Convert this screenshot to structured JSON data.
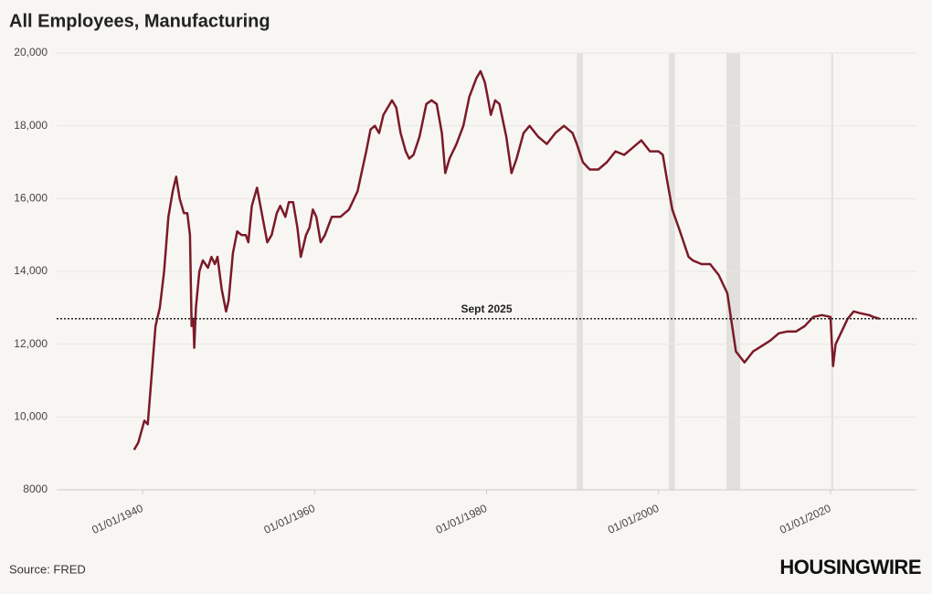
{
  "chart_data": {
    "type": "line",
    "title": "All Employees, Manufacturing",
    "source": "Source: FRED",
    "brand": "HOUSINGWIRE",
    "xlim": [
      1930,
      2030
    ],
    "xticks": [
      {
        "value": 1940,
        "label": "01/01/1940"
      },
      {
        "value": 1960,
        "label": "01/01/1960"
      },
      {
        "value": 1980,
        "label": "01/01/1980"
      },
      {
        "value": 2000,
        "label": "01/01/2000"
      },
      {
        "value": 2020,
        "label": "01/01/2020"
      }
    ],
    "ylim": [
      8000,
      20000
    ],
    "yticks": [
      8000,
      {
        "value": 10000,
        "label": "10,000"
      },
      {
        "value": 12000,
        "label": "12,000"
      },
      {
        "value": 14000,
        "label": "14,000"
      },
      {
        "value": 16000,
        "label": "16,000"
      },
      {
        "value": 18000,
        "label": "18,000"
      },
      {
        "value": 20000,
        "label": "20,000"
      }
    ],
    "grid": true,
    "reference_line": {
      "value": 12700,
      "label": "Sept 2025"
    },
    "shaded_periods": [
      [
        1990.5,
        1991.2
      ],
      [
        2001.2,
        2001.9
      ],
      [
        2007.9,
        2009.5
      ],
      [
        2020.1,
        2020.3
      ]
    ],
    "shade_color": "#e2e0dd",
    "series": [
      {
        "name": "All Employees, Manufacturing",
        "color": "#7b1a28",
        "x": [
          1939.0,
          1939.5,
          1940.2,
          1940.6,
          1941,
          1941.5,
          1942,
          1942.5,
          1943,
          1943.5,
          1943.9,
          1944.3,
          1944.8,
          1945.2,
          1945.5,
          1945.7,
          1945.9,
          1946.0,
          1946.2,
          1946.6,
          1947,
          1947.6,
          1948,
          1948.4,
          1948.7,
          1949.2,
          1949.7,
          1950,
          1950.5,
          1951,
          1951.5,
          1952,
          1952.3,
          1952.7,
          1953.3,
          1953.7,
          1954.5,
          1955,
          1955.6,
          1956,
          1956.6,
          1957,
          1957.5,
          1958,
          1958.4,
          1959,
          1959.4,
          1959.8,
          1960.2,
          1960.7,
          1961.2,
          1962,
          1963,
          1964,
          1965,
          1966,
          1966.5,
          1967,
          1967.5,
          1968,
          1969,
          1969.5,
          1970,
          1970.6,
          1971,
          1971.5,
          1972.2,
          1973,
          1973.6,
          1974.2,
          1974.8,
          1975.2,
          1975.7,
          1976.5,
          1977.3,
          1978,
          1978.8,
          1979.3,
          1979.8,
          1980.2,
          1980.5,
          1981,
          1981.5,
          1982.3,
          1982.9,
          1983.5,
          1984.3,
          1985,
          1986,
          1987,
          1988,
          1989,
          1990,
          1990.5,
          1991.2,
          1992,
          1993,
          1994,
          1995,
          1996,
          1997,
          1998,
          1999,
          2000,
          2000.5,
          2001,
          2001.6,
          2002.5,
          2003.5,
          2004,
          2005,
          2006,
          2007,
          2008,
          2009,
          2010,
          2011,
          2012,
          2013,
          2014,
          2015,
          2016,
          2017,
          2018,
          2019,
          2020.0,
          2020.3,
          2020.6,
          2021,
          2022,
          2022.7,
          2023.5,
          2024.5,
          2025.0,
          2025.7
        ],
        "values": [
          9100,
          9300,
          9900,
          9800,
          11000,
          12500,
          13000,
          14000,
          15500,
          16200,
          16600,
          16000,
          15600,
          15600,
          15000,
          12500,
          12700,
          11900,
          13000,
          14000,
          14300,
          14100,
          14400,
          14200,
          14400,
          13500,
          12900,
          13200,
          14500,
          15100,
          15000,
          15000,
          14800,
          15800,
          16300,
          15800,
          14800,
          15000,
          15600,
          15800,
          15500,
          15900,
          15900,
          15200,
          14400,
          15000,
          15200,
          15700,
          15500,
          14800,
          15000,
          15500,
          15500,
          15700,
          16200,
          17300,
          17900,
          18000,
          17800,
          18300,
          18700,
          18500,
          17800,
          17300,
          17100,
          17200,
          17700,
          18600,
          18700,
          18600,
          17800,
          16700,
          17100,
          17500,
          18000,
          18800,
          19300,
          19500,
          19200,
          18700,
          18300,
          18700,
          18600,
          17700,
          16700,
          17100,
          17800,
          18000,
          17700,
          17500,
          17800,
          18000,
          17800,
          17500,
          17000,
          16800,
          16800,
          17000,
          17300,
          17200,
          17400,
          17600,
          17300,
          17300,
          17200,
          16500,
          15700,
          15100,
          14400,
          14300,
          14200,
          14200,
          13900,
          13400,
          11800,
          11500,
          11800,
          11950,
          12100,
          12300,
          12350,
          12350,
          12500,
          12750,
          12800,
          12750,
          11400,
          12000,
          12200,
          12700,
          12900,
          12850,
          12800,
          12750,
          12700
        ]
      }
    ]
  }
}
